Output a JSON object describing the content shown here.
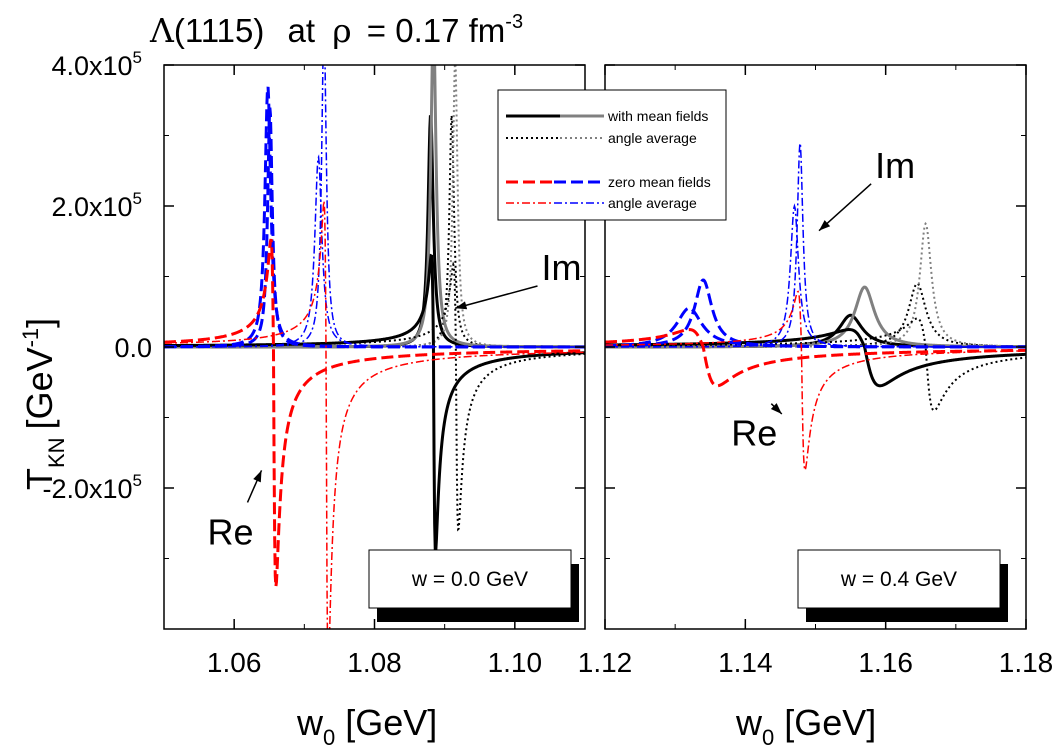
{
  "title": {
    "lambda": "Λ",
    "mass": "(1115)",
    "at": "at",
    "rho": "ρ",
    "eq": "= 0.17 fm",
    "exp": "-3"
  },
  "ylabel": {
    "main": "T",
    "sub": "KN",
    "unit": "[GeV",
    "exp": "-1",
    "close": "]"
  },
  "xlabel": {
    "main": "w",
    "sub": "0",
    "unit": "[GeV]"
  },
  "legend": {
    "line1": "with mean fields",
    "line2": "angle average",
    "line3": "zero mean fields",
    "line4": "angle average"
  },
  "colors": {
    "black": "#000000",
    "gray": "#808080",
    "red": "#ff0000",
    "blue": "#0000ff"
  },
  "chart_data": [
    {
      "type": "line",
      "panel": "left",
      "box_label": "w = 0.0 GeV",
      "xlim": [
        1.05,
        1.11
      ],
      "ylim": [
        -400000,
        400000
      ],
      "xticks": [
        1.06,
        1.08,
        1.1
      ],
      "xtick_labels": [
        "1.06",
        "1.08",
        "1.10"
      ],
      "yticks": [
        -200000,
        0,
        200000,
        400000
      ],
      "ytick_labels": [
        "-2.0x10",
        "0.0",
        "2.0x10",
        "4.0x10"
      ],
      "ytick_exps": [
        "5",
        "",
        "5",
        "5"
      ],
      "annotations": [
        {
          "text": "Im",
          "x": 1.1038,
          "y": 95000,
          "arrow_to": [
            1.0915,
            55000
          ]
        },
        {
          "text": "Re",
          "x": 1.0562,
          "y": -280000,
          "arrow_to": [
            1.0639,
            -175000
          ]
        }
      ],
      "series": [
        {
          "part": "Im",
          "mean": "with",
          "avg": false,
          "peak": 1.088,
          "gamma": 0.00045,
          "amp": 330000
        },
        {
          "part": "Im",
          "mean": "with",
          "avg": true,
          "peak": 1.091,
          "gamma": 0.0004,
          "amp": 330000
        },
        {
          "part": "Im",
          "mean": "with",
          "avg": false,
          "peak": 1.0884,
          "gamma": 0.00045,
          "amp": 460000
        },
        {
          "part": "Im",
          "mean": "with",
          "avg": true,
          "peak": 1.0915,
          "gamma": 0.0004,
          "amp": 410000
        },
        {
          "part": "Re",
          "mean": "with",
          "avg": false,
          "peak": 1.0884,
          "gamma": 0.0003,
          "amp": 290000
        },
        {
          "part": "Re",
          "mean": "with",
          "avg": true,
          "peak": 1.0916,
          "gamma": 0.00035,
          "amp": 260000
        },
        {
          "part": "Im",
          "mean": "zero",
          "avg": false,
          "peak": 1.0648,
          "gamma": 0.0005,
          "amp": 370000
        },
        {
          "part": "Im",
          "mean": "zero",
          "avg": true,
          "peak": 1.072,
          "gamma": 0.0006,
          "amp": 270000
        },
        {
          "part": "Im",
          "mean": "zero",
          "avg": false,
          "peak": 1.0651,
          "gamma": 0.0004,
          "amp": 340000
        },
        {
          "part": "Im",
          "mean": "zero",
          "avg": true,
          "peak": 1.0728,
          "gamma": 0.0004,
          "amp": 460000
        },
        {
          "part": "Re",
          "mean": "zero",
          "avg": false,
          "peak": 1.0656,
          "gamma": 0.00035,
          "amp": 340000
        },
        {
          "part": "Re",
          "mean": "zero",
          "avg": true,
          "peak": 1.0731,
          "gamma": 0.0003,
          "amp": 460000
        }
      ]
    },
    {
      "type": "line",
      "panel": "right",
      "box_label": "w = 0.4 GeV",
      "xlim": [
        1.12,
        1.18
      ],
      "ylim": [
        -400000,
        400000
      ],
      "xticks": [
        1.12,
        1.14,
        1.16,
        1.18
      ],
      "xtick_labels": [
        "1.12",
        "1.14",
        "1.16",
        "1.18"
      ],
      "annotations": [
        {
          "text": "Im",
          "x": 1.1585,
          "y": 240000,
          "arrow_to": [
            1.1505,
            165000
          ]
        },
        {
          "text": "Re",
          "x": 1.138,
          "y": -140000,
          "arrow_to": [
            1.1452,
            -95000
          ]
        }
      ],
      "series": [
        {
          "part": "Im",
          "mean": "with",
          "avg": false,
          "peak": 1.155,
          "gamma": 0.002,
          "amp": 45000
        },
        {
          "part": "Im",
          "mean": "with",
          "avg": true,
          "peak": 1.1645,
          "gamma": 0.0015,
          "amp": 90000
        },
        {
          "part": "Im",
          "mean": "with",
          "avg": false,
          "peak": 1.157,
          "gamma": 0.0017,
          "amp": 85000
        },
        {
          "part": "Im",
          "mean": "with",
          "avg": true,
          "peak": 1.1657,
          "gamma": 0.001,
          "amp": 175000
        },
        {
          "part": "Re",
          "mean": "with",
          "avg": false,
          "peak": 1.157,
          "gamma": 0.0022,
          "amp": 55000
        },
        {
          "part": "Re",
          "mean": "with",
          "avg": true,
          "peak": 1.1657,
          "gamma": 0.0012,
          "amp": 90000
        },
        {
          "part": "Im",
          "mean": "zero",
          "avg": false,
          "peak": 1.132,
          "gamma": 0.0022,
          "amp": 55000
        },
        {
          "part": "Im",
          "mean": "zero",
          "avg": true,
          "peak": 1.147,
          "gamma": 0.0007,
          "amp": 200000
        },
        {
          "part": "Im",
          "mean": "zero",
          "avg": false,
          "peak": 1.134,
          "gamma": 0.0015,
          "amp": 95000
        },
        {
          "part": "Im",
          "mean": "zero",
          "avg": true,
          "peak": 1.1478,
          "gamma": 0.0005,
          "amp": 290000
        },
        {
          "part": "Re",
          "mean": "zero",
          "avg": false,
          "peak": 1.134,
          "gamma": 0.002,
          "amp": 55000
        },
        {
          "part": "Re",
          "mean": "zero",
          "avg": true,
          "peak": 1.148,
          "gamma": 0.0005,
          "amp": 175000
        }
      ]
    }
  ]
}
